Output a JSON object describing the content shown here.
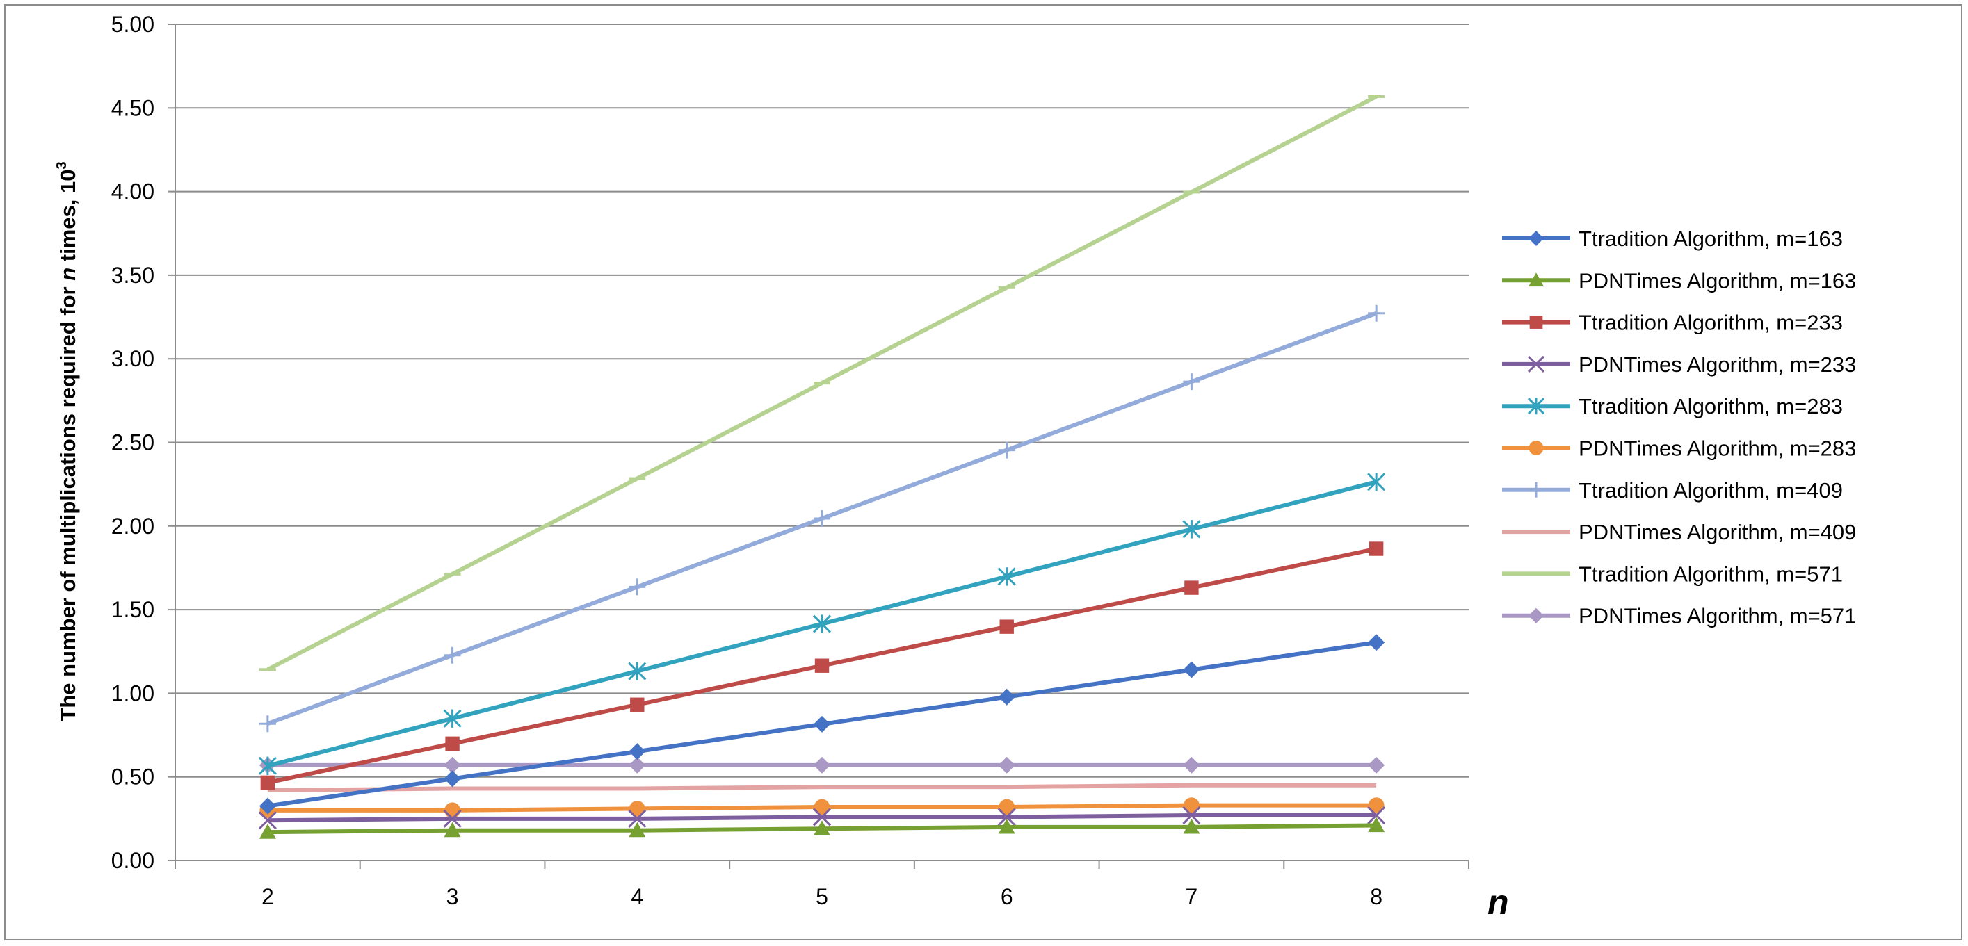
{
  "chart_data": {
    "type": "line",
    "title": "",
    "xlabel": "n",
    "ylabel_prefix": "The number of multiplications required for ",
    "ylabel_italic": "n",
    "ylabel_suffix": " times, 10",
    "ylabel_superscript": "3",
    "x": [
      2,
      3,
      4,
      5,
      6,
      7,
      8
    ],
    "x_tick_labels": [
      "2",
      "3",
      "4",
      "5",
      "6",
      "7",
      "8"
    ],
    "ylim": [
      0,
      5
    ],
    "y_ticks": [
      0,
      0.5,
      1,
      1.5,
      2,
      2.5,
      3,
      3.5,
      4,
      4.5,
      5
    ],
    "y_tick_labels": [
      "0.00",
      "0.50",
      "1.00",
      "1.50",
      "2.00",
      "2.50",
      "3.00",
      "3.50",
      "4.00",
      "4.50",
      "5.00"
    ],
    "grid": "horizontal",
    "legend_position": "right",
    "series": [
      {
        "name": "Ttradition Algorithm, m=163",
        "color": "#4472C4",
        "marker": "diamond",
        "values": [
          0.326,
          0.489,
          0.652,
          0.815,
          0.978,
          1.141,
          1.304
        ]
      },
      {
        "name": "PDNTimes Algorithm, m=163",
        "color": "#77A033",
        "marker": "triangle",
        "values": [
          0.17,
          0.18,
          0.18,
          0.19,
          0.2,
          0.2,
          0.21
        ]
      },
      {
        "name": "Ttradition Algorithm, m=233",
        "color": "#BE4B48",
        "marker": "square",
        "values": [
          0.466,
          0.699,
          0.932,
          1.165,
          1.398,
          1.631,
          1.864
        ]
      },
      {
        "name": "PDNTimes Algorithm, m=233",
        "color": "#7D5FA0",
        "marker": "x",
        "values": [
          0.24,
          0.25,
          0.25,
          0.26,
          0.26,
          0.27,
          0.27
        ]
      },
      {
        "name": "Ttradition Algorithm, m=283",
        "color": "#31A3BE",
        "marker": "asterisk",
        "values": [
          0.566,
          0.849,
          1.132,
          1.415,
          1.698,
          1.981,
          2.264
        ]
      },
      {
        "name": "PDNTimes Algorithm, m=283",
        "color": "#F0923D",
        "marker": "circle",
        "values": [
          0.3,
          0.3,
          0.31,
          0.32,
          0.32,
          0.33,
          0.33
        ]
      },
      {
        "name": "Ttradition Algorithm, m=409",
        "color": "#93ABDB",
        "marker": "plus",
        "values": [
          0.818,
          1.227,
          1.636,
          2.045,
          2.454,
          2.863,
          3.272
        ]
      },
      {
        "name": "PDNTimes Algorithm, m=409",
        "color": "#E3A3A3",
        "marker": "none",
        "values": [
          0.42,
          0.43,
          0.43,
          0.44,
          0.44,
          0.45,
          0.45
        ]
      },
      {
        "name": "Ttradition Algorithm, m=571",
        "color": "#B5D291",
        "marker": "dash",
        "values": [
          1.142,
          1.713,
          2.284,
          2.855,
          3.426,
          3.997,
          4.568
        ]
      },
      {
        "name": "PDNTimes Algorithm, m=571",
        "color": "#A997C4",
        "marker": "diamond",
        "values": [
          0.57,
          0.57,
          0.57,
          0.57,
          0.57,
          0.57,
          0.57
        ]
      }
    ]
  }
}
